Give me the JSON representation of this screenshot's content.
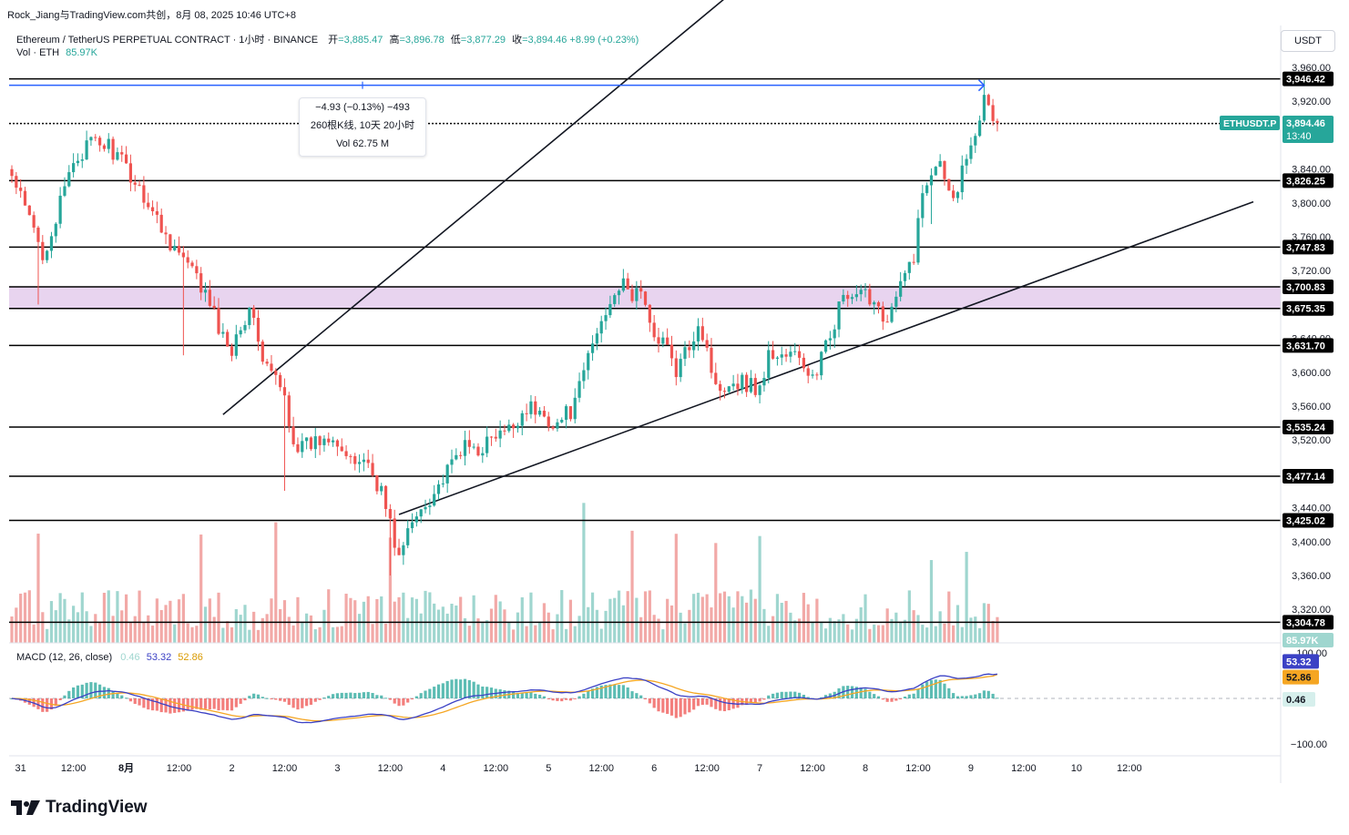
{
  "header": {
    "top_title": "Rock_Jiang与TradingView.com共创，8月 08, 2025 10:46 UTC+8",
    "symbol_line": "Ethereum / TetherUS PERPETUAL CONTRACT · 1小时 · BINANCE",
    "open_label": "开",
    "open": "=3,885.47",
    "high_label": "高",
    "high": "=3,896.78",
    "low_label": "低",
    "low": "=3,877.29",
    "close_label": "收",
    "close": "=3,894.46",
    "change": "+8.99 (+0.23%)",
    "vol_label": "Vol · ETH",
    "vol_value": "85.97K"
  },
  "currency_button": "USDT",
  "measure_tooltip": {
    "line1": "−4.93 (−0.13%) −493",
    "line2": "260根K线, 10天 20小时",
    "line3": "Vol 62.75 M"
  },
  "macd_legend": {
    "label": "MACD (12, 26, close)",
    "hist": "0.46",
    "macd": "53.32",
    "signal": "52.86"
  },
  "branding": "TradingView",
  "colors": {
    "up": "#26a69a",
    "down": "#ef5350",
    "up_vol": "#9fd6cf",
    "down_vol": "#f2a9a7",
    "macd_line": "#3b41c5",
    "signal_line": "#f5a623",
    "zone_fill": "#e8d4ef",
    "current_price_label": "#26a69a",
    "measure_arrow": "#2962ff",
    "level_line": "#000000"
  },
  "chart_data": {
    "type": "candlestick",
    "symbol": "ETHUSDT.P",
    "timeframe": "1小时",
    "ylim": [
      3280,
      3975
    ],
    "y_ticks": [
      "3,960.00",
      "3,920.00",
      "3,880.00",
      "3,840.00",
      "3,800.00",
      "3,760.00",
      "3,720.00",
      "3,680.00",
      "3,640.00",
      "3,600.00",
      "3,560.00",
      "3,520.00",
      "3,480.00",
      "3,440.00",
      "3,400.00",
      "3,360.00",
      "3,320.00"
    ],
    "x_ticks": [
      "31",
      "12:00",
      "8月",
      "12:00",
      "2",
      "12:00",
      "3",
      "12:00",
      "4",
      "12:00",
      "5",
      "12:00",
      "6",
      "12:00",
      "7",
      "12:00",
      "8",
      "12:00",
      "9",
      "12:00",
      "10",
      "12:00"
    ],
    "horizontal_levels": [
      {
        "value": 3946.42,
        "label": "3,946.42"
      },
      {
        "value": 3893.68,
        "label": "3,893.68"
      },
      {
        "value": 3826.25,
        "label": "3,826.25"
      },
      {
        "value": 3747.83,
        "label": "3,747.83"
      },
      {
        "value": 3700.83,
        "label": "3,700.83"
      },
      {
        "value": 3675.35,
        "label": "3,675.35"
      },
      {
        "value": 3631.7,
        "label": "3,631.70"
      },
      {
        "value": 3535.24,
        "label": "3,535.24"
      },
      {
        "value": 3477.14,
        "label": "3,477.14"
      },
      {
        "value": 3425.02,
        "label": "3,425.02"
      },
      {
        "value": 3304.78,
        "label": "3,304.78"
      }
    ],
    "zone": {
      "from": 3675.35,
      "to": 3700.83
    },
    "current_price": {
      "symbol_label": "ETHUSDT.P",
      "value": "3,894.46",
      "countdown": "13:40"
    },
    "volume_last": "85.97K",
    "channel": {
      "upper": [
        [
          48.0,
          3550
        ],
        [
          168.0,
          4067
        ]
      ],
      "lower": [
        [
          88.0,
          3432
        ],
        [
          250.0,
          3740
        ]
      ]
    },
    "waypoints": [
      [
        0,
        3830
      ],
      [
        4,
        3780
      ],
      [
        7,
        3740
      ],
      [
        10,
        3780
      ],
      [
        14,
        3850
      ],
      [
        18,
        3870
      ],
      [
        22,
        3868
      ],
      [
        26,
        3840
      ],
      [
        30,
        3810
      ],
      [
        34,
        3770
      ],
      [
        38,
        3740
      ],
      [
        42,
        3710
      ],
      [
        45,
        3680
      ],
      [
        48,
        3640
      ],
      [
        50,
        3630
      ],
      [
        52,
        3660
      ],
      [
        55,
        3670
      ],
      [
        57,
        3610
      ],
      [
        59,
        3600
      ],
      [
        62,
        3570
      ],
      [
        64,
        3520
      ],
      [
        66,
        3510
      ],
      [
        70,
        3520
      ],
      [
        73,
        3530
      ],
      [
        77,
        3490
      ],
      [
        80,
        3500
      ],
      [
        84,
        3460
      ],
      [
        86,
        3420
      ],
      [
        88,
        3380
      ],
      [
        90,
        3410
      ],
      [
        93,
        3440
      ],
      [
        96,
        3460
      ],
      [
        99,
        3480
      ],
      [
        102,
        3510
      ],
      [
        106,
        3510
      ],
      [
        109,
        3520
      ],
      [
        113,
        3530
      ],
      [
        117,
        3560
      ],
      [
        120,
        3550
      ],
      [
        124,
        3540
      ],
      [
        128,
        3560
      ],
      [
        131,
        3620
      ],
      [
        134,
        3660
      ],
      [
        137,
        3700
      ],
      [
        139,
        3700
      ],
      [
        141,
        3690
      ],
      [
        143,
        3700
      ],
      [
        145,
        3650
      ],
      [
        148,
        3640
      ],
      [
        151,
        3600
      ],
      [
        153,
        3620
      ],
      [
        156,
        3660
      ],
      [
        158,
        3630
      ],
      [
        160,
        3580
      ],
      [
        163,
        3590
      ],
      [
        166,
        3590
      ],
      [
        170,
        3580
      ],
      [
        172,
        3620
      ],
      [
        175,
        3620
      ],
      [
        178,
        3620
      ],
      [
        181,
        3600
      ],
      [
        183,
        3590
      ],
      [
        185,
        3640
      ],
      [
        187,
        3660
      ],
      [
        189,
        3690
      ],
      [
        191,
        3680
      ],
      [
        193,
        3690
      ],
      [
        195,
        3690
      ],
      [
        197,
        3680
      ],
      [
        199,
        3660
      ],
      [
        202,
        3700
      ],
      [
        205,
        3740
      ],
      [
        207,
        3810
      ],
      [
        209,
        3840
      ],
      [
        211,
        3860
      ],
      [
        213,
        3810
      ],
      [
        215,
        3820
      ],
      [
        217,
        3860
      ],
      [
        219,
        3890
      ],
      [
        221,
        3920
      ],
      [
        223,
        3900
      ],
      [
        224,
        3894.46
      ]
    ],
    "macd": {
      "ylim": [
        -100,
        105
      ],
      "y_ticks": [
        "100.00",
        "−100.00"
      ],
      "macd_last": "53.32",
      "signal_last": "52.86",
      "hist_last": "0.46"
    }
  }
}
